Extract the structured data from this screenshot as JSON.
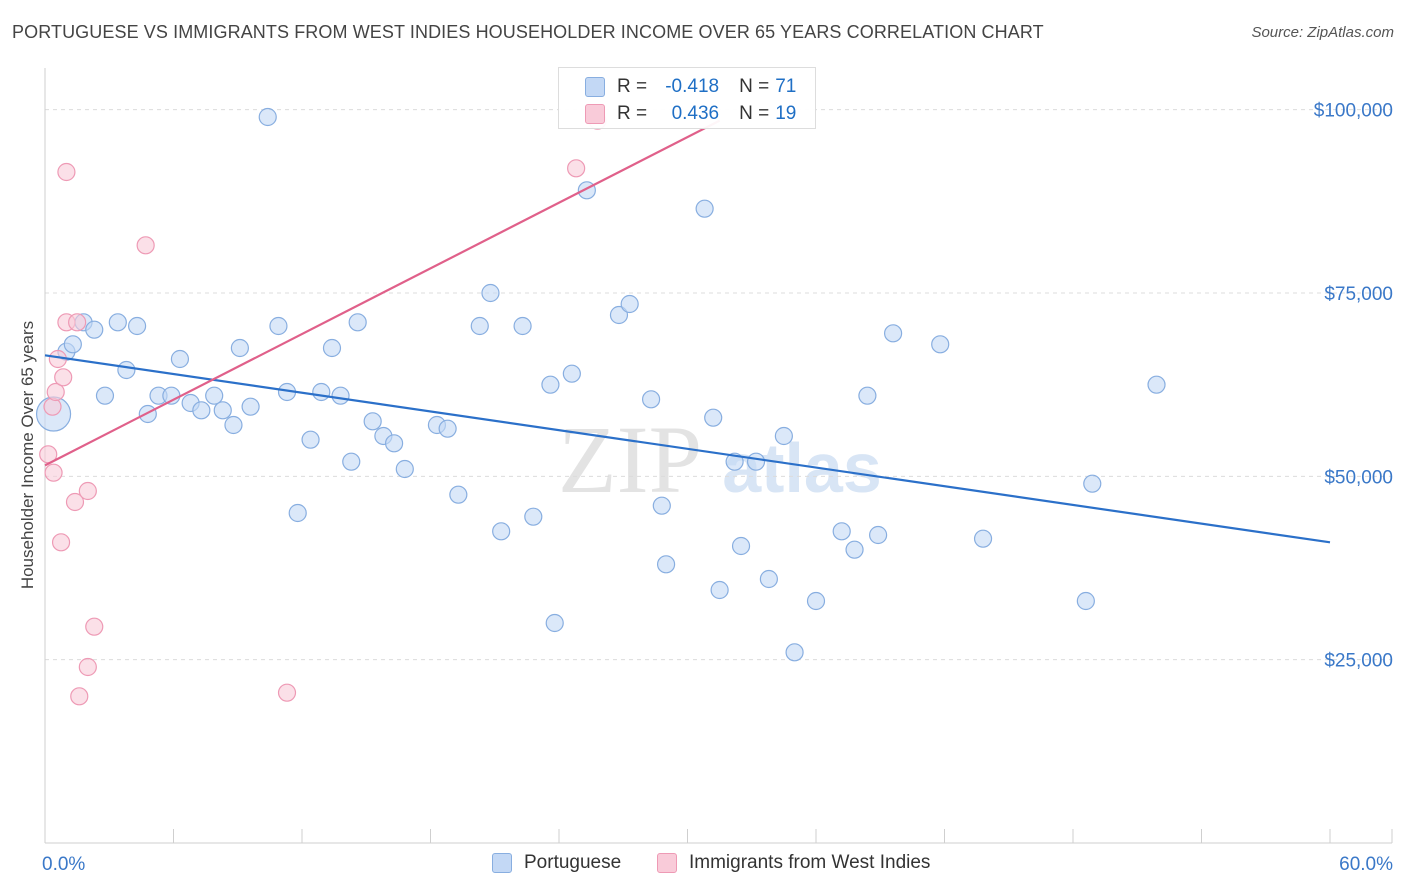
{
  "title": "PORTUGUESE VS IMMIGRANTS FROM WEST INDIES HOUSEHOLDER INCOME OVER 65 YEARS CORRELATION CHART",
  "source": "Source: ZipAtlas.com",
  "colors": {
    "blue_fill": "#c3d8f5",
    "blue_stroke": "#88aee0",
    "blue_line": "#2b70c9",
    "pink_fill": "#f9cbd9",
    "pink_stroke": "#ee9ab5",
    "pink_line": "#e0608a",
    "grid": "#dcdcdc",
    "axis_text": "#3a78c8",
    "watermark": "#e4e4e4"
  },
  "legend": {
    "r_label": "R =",
    "n_label": "N =",
    "series1": {
      "r": "-0.418",
      "n": "71"
    },
    "series2": {
      "r": "0.436",
      "n": "19"
    }
  },
  "bottom_legend": {
    "series1": "Portuguese",
    "series2": "Immigrants from West Indies"
  },
  "watermark": {
    "zip": "ZIP",
    "atlas": "atlas"
  },
  "chart_data": {
    "type": "scatter",
    "ylabel": "Householder Income Over 65 years",
    "xlabel": "",
    "xlim": [
      0,
      60
    ],
    "ylim": [
      0,
      105000
    ],
    "x_tick_labels": [
      {
        "value": 0,
        "label": "0.0%"
      },
      {
        "value": 60,
        "label": "60.0%"
      }
    ],
    "y_tick_labels": [
      {
        "value": 100000,
        "label": "$100,000"
      },
      {
        "value": 75000,
        "label": "$75,000"
      },
      {
        "value": 50000,
        "label": "$50,000"
      },
      {
        "value": 25000,
        "label": "$25,000"
      }
    ],
    "y_gridlines": [
      100000,
      75000,
      50000,
      25000
    ],
    "series": [
      {
        "name": "Portuguese",
        "r": -0.418,
        "n": 71,
        "trend": {
          "x": [
            0,
            60
          ],
          "y": [
            66500,
            41000
          ]
        },
        "points": [
          {
            "x": 0.4,
            "y": 58500,
            "big": true
          },
          {
            "x": 1.0,
            "y": 67000
          },
          {
            "x": 1.3,
            "y": 68000
          },
          {
            "x": 1.8,
            "y": 71000
          },
          {
            "x": 2.3,
            "y": 70000
          },
          {
            "x": 2.8,
            "y": 61000
          },
          {
            "x": 3.4,
            "y": 71000
          },
          {
            "x": 3.8,
            "y": 64500
          },
          {
            "x": 4.3,
            "y": 70500
          },
          {
            "x": 4.8,
            "y": 58500
          },
          {
            "x": 5.3,
            "y": 61000
          },
          {
            "x": 5.9,
            "y": 61000
          },
          {
            "x": 6.3,
            "y": 66000
          },
          {
            "x": 6.8,
            "y": 60000
          },
          {
            "x": 7.3,
            "y": 59000
          },
          {
            "x": 7.9,
            "y": 61000
          },
          {
            "x": 8.3,
            "y": 59000
          },
          {
            "x": 8.8,
            "y": 57000
          },
          {
            "x": 9.1,
            "y": 67500
          },
          {
            "x": 9.6,
            "y": 59500
          },
          {
            "x": 10.4,
            "y": 99000
          },
          {
            "x": 10.9,
            "y": 70500
          },
          {
            "x": 11.3,
            "y": 61500
          },
          {
            "x": 11.8,
            "y": 45000
          },
          {
            "x": 12.4,
            "y": 55000
          },
          {
            "x": 12.9,
            "y": 61500
          },
          {
            "x": 13.4,
            "y": 67500
          },
          {
            "x": 13.8,
            "y": 61000
          },
          {
            "x": 14.3,
            "y": 52000
          },
          {
            "x": 14.6,
            "y": 71000
          },
          {
            "x": 15.3,
            "y": 57500
          },
          {
            "x": 15.8,
            "y": 55500
          },
          {
            "x": 16.3,
            "y": 54500
          },
          {
            "x": 16.8,
            "y": 51000
          },
          {
            "x": 18.3,
            "y": 57000
          },
          {
            "x": 18.8,
            "y": 56500
          },
          {
            "x": 19.3,
            "y": 47500
          },
          {
            "x": 20.3,
            "y": 70500
          },
          {
            "x": 20.8,
            "y": 75000
          },
          {
            "x": 21.3,
            "y": 42500
          },
          {
            "x": 22.3,
            "y": 70500
          },
          {
            "x": 22.8,
            "y": 44500
          },
          {
            "x": 23.6,
            "y": 62500
          },
          {
            "x": 23.8,
            "y": 30000
          },
          {
            "x": 24.6,
            "y": 64000
          },
          {
            "x": 25.3,
            "y": 89000
          },
          {
            "x": 26.8,
            "y": 72000
          },
          {
            "x": 27.3,
            "y": 73500
          },
          {
            "x": 28.3,
            "y": 60500
          },
          {
            "x": 28.8,
            "y": 46000
          },
          {
            "x": 29.0,
            "y": 38000
          },
          {
            "x": 30.8,
            "y": 86500
          },
          {
            "x": 31.2,
            "y": 58000
          },
          {
            "x": 31.5,
            "y": 34500
          },
          {
            "x": 32.2,
            "y": 52000
          },
          {
            "x": 32.5,
            "y": 40500
          },
          {
            "x": 33.2,
            "y": 52000
          },
          {
            "x": 33.8,
            "y": 36000
          },
          {
            "x": 34.5,
            "y": 55500
          },
          {
            "x": 35.0,
            "y": 26000
          },
          {
            "x": 36.0,
            "y": 33000
          },
          {
            "x": 37.2,
            "y": 42500
          },
          {
            "x": 37.8,
            "y": 40000
          },
          {
            "x": 38.4,
            "y": 61000
          },
          {
            "x": 38.9,
            "y": 42000
          },
          {
            "x": 39.6,
            "y": 69500
          },
          {
            "x": 41.8,
            "y": 68000
          },
          {
            "x": 43.8,
            "y": 41500
          },
          {
            "x": 48.6,
            "y": 33000
          },
          {
            "x": 48.9,
            "y": 49000
          },
          {
            "x": 51.9,
            "y": 62500
          }
        ]
      },
      {
        "name": "Immigrants from West Indies",
        "r": 0.436,
        "n": 19,
        "trend": {
          "x": [
            0,
            31.5
          ],
          "y": [
            51500,
            98500
          ]
        },
        "points": [
          {
            "x": 0.15,
            "y": 53000
          },
          {
            "x": 0.35,
            "y": 59500
          },
          {
            "x": 0.5,
            "y": 61500
          },
          {
            "x": 0.4,
            "y": 50500
          },
          {
            "x": 0.6,
            "y": 66000
          },
          {
            "x": 0.75,
            "y": 41000
          },
          {
            "x": 0.85,
            "y": 63500
          },
          {
            "x": 1.0,
            "y": 71000
          },
          {
            "x": 1.0,
            "y": 91500
          },
          {
            "x": 1.4,
            "y": 46500
          },
          {
            "x": 1.5,
            "y": 71000
          },
          {
            "x": 1.6,
            "y": 20000
          },
          {
            "x": 2.0,
            "y": 24000
          },
          {
            "x": 2.0,
            "y": 48000
          },
          {
            "x": 2.3,
            "y": 29500
          },
          {
            "x": 4.7,
            "y": 81500
          },
          {
            "x": 11.3,
            "y": 20500
          },
          {
            "x": 24.8,
            "y": 92000
          },
          {
            "x": 25.8,
            "y": 98500
          }
        ]
      }
    ]
  }
}
